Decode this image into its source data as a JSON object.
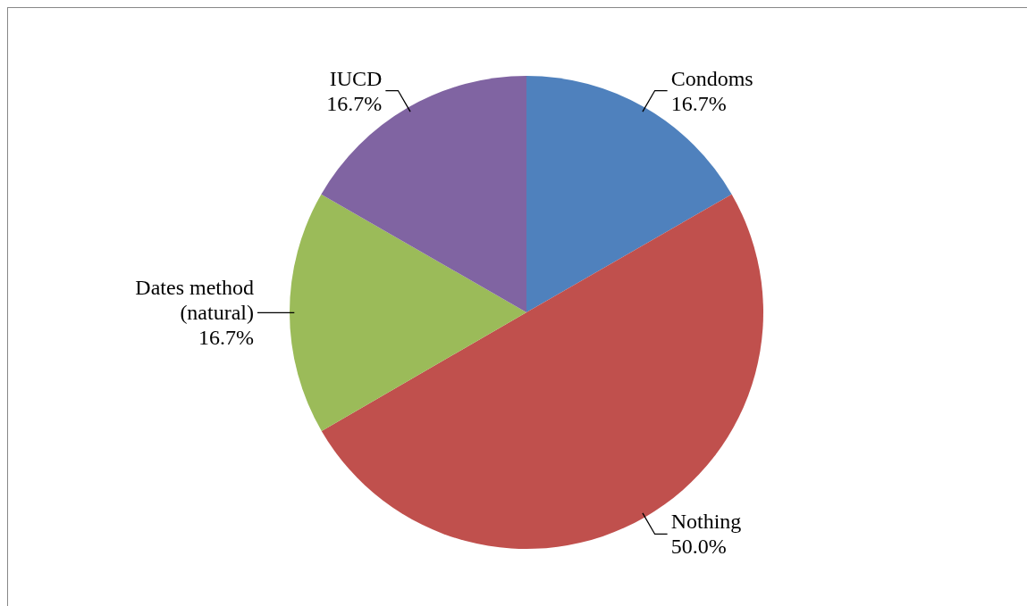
{
  "chart_data": {
    "type": "pie",
    "categories": [
      "Condoms",
      "Nothing",
      "Dates method (natural)",
      "IUCD"
    ],
    "values": [
      16.7,
      50.0,
      16.7,
      16.7
    ],
    "value_labels": [
      "16.7%",
      "50.0%",
      "16.7%",
      "16.7%"
    ],
    "colors": [
      "#4f81bd",
      "#c0504d",
      "#9bbb59",
      "#8064a2"
    ],
    "legend": false
  }
}
